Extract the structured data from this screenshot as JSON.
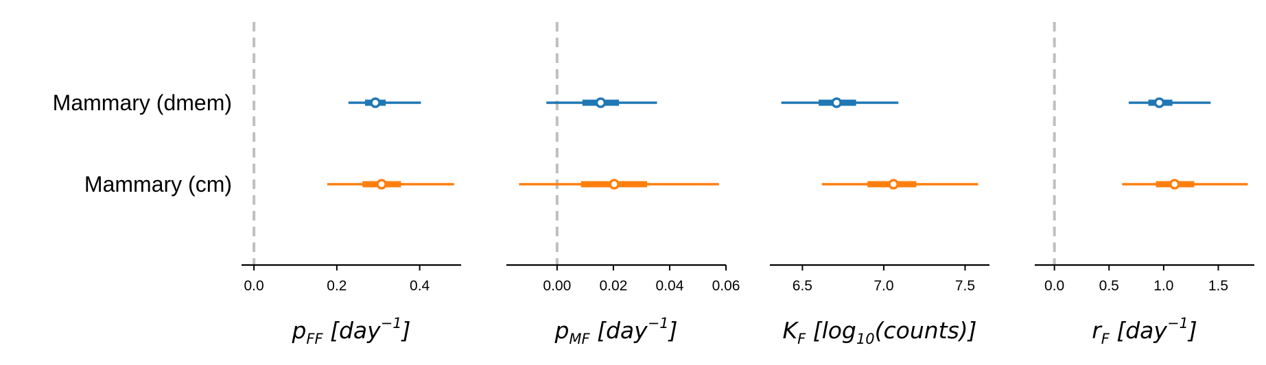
{
  "chart_data": {
    "type": "forest",
    "rows": [
      "Mammary (dmem)",
      "Mammary (cm)"
    ],
    "series_colors": [
      "#1f77b4",
      "#ff7f0e"
    ],
    "reference_line_color": "#bfbfbf",
    "panels": [
      {
        "id": "pFF",
        "xlabel": {
          "main": "p",
          "sub": "FF",
          "unit_pre": " [day",
          "unit_sup": "−1",
          "unit_post": "]"
        },
        "xlim": [
          -0.03,
          0.5
        ],
        "xticks": [
          0.0,
          0.2,
          0.4
        ],
        "xtick_labels": [
          "0.0",
          "0.2",
          "0.4"
        ],
        "ref_line": 0,
        "estimates": [
          {
            "row": "Mammary (dmem)",
            "point": 0.293,
            "iqr": [
              0.268,
              0.318
            ],
            "ci": [
              0.228,
              0.403
            ]
          },
          {
            "row": "Mammary (cm)",
            "point": 0.308,
            "iqr": [
              0.262,
              0.355
            ],
            "ci": [
              0.177,
              0.483
            ]
          }
        ]
      },
      {
        "id": "pMF",
        "xlabel": {
          "main": "p",
          "sub": "MF",
          "unit_pre": " [day",
          "unit_sup": "−1",
          "unit_post": "]"
        },
        "xlim": [
          -0.018,
          0.06
        ],
        "xticks": [
          0.0,
          0.02,
          0.04,
          0.06
        ],
        "xtick_labels": [
          "0.00",
          "0.02",
          "0.04",
          "0.06"
        ],
        "ref_line": 0,
        "estimates": [
          {
            "row": "Mammary (dmem)",
            "point": 0.0155,
            "iqr": [
              0.009,
              0.022
            ],
            "ci": [
              -0.0038,
              0.0355
            ]
          },
          {
            "row": "Mammary (cm)",
            "point": 0.0203,
            "iqr": [
              0.0085,
              0.032
            ],
            "ci": [
              -0.0135,
              0.0575
            ]
          }
        ]
      },
      {
        "id": "KF",
        "xlabel": {
          "main": "K",
          "sub": "F",
          "unit_pre": " [log",
          "unit_sub": "10",
          "unit_post": "(counts)]"
        },
        "xlim": [
          6.3,
          7.65
        ],
        "xticks": [
          6.5,
          7.0,
          7.5
        ],
        "xtick_labels": [
          "6.5",
          "7.0",
          "7.5"
        ],
        "ref_line": null,
        "estimates": [
          {
            "row": "Mammary (dmem)",
            "point": 6.71,
            "iqr": [
              6.6,
              6.83
            ],
            "ci": [
              6.37,
              7.09
            ]
          },
          {
            "row": "Mammary (cm)",
            "point": 7.06,
            "iqr": [
              6.9,
              7.2
            ],
            "ci": [
              6.62,
              7.58
            ]
          }
        ]
      },
      {
        "id": "rF",
        "xlabel": {
          "main": "r",
          "sub": "F",
          "unit_pre": " [day",
          "unit_sup": "−1",
          "unit_post": "]"
        },
        "xlim": [
          -0.18,
          1.83
        ],
        "xticks": [
          0.0,
          0.5,
          1.0,
          1.5
        ],
        "xtick_labels": [
          "0.0",
          "0.5",
          "1.0",
          "1.5"
        ],
        "ref_line": 0,
        "estimates": [
          {
            "row": "Mammary (dmem)",
            "point": 0.96,
            "iqr": [
              0.86,
              1.08
            ],
            "ci": [
              0.68,
              1.43
            ]
          },
          {
            "row": "Mammary (cm)",
            "point": 1.1,
            "iqr": [
              0.93,
              1.28
            ],
            "ci": [
              0.62,
              1.77
            ]
          }
        ]
      }
    ]
  }
}
